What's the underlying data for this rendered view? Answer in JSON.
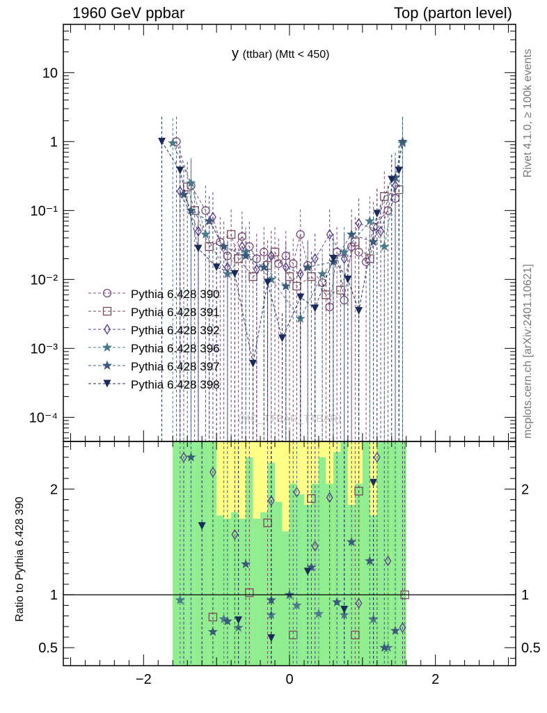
{
  "header": {
    "left": "1960 GeV ppbar",
    "right": "Top (parton level)"
  },
  "plot_title": {
    "main": "y",
    "sub": "(ttbar) (Mtt < 450)"
  },
  "side_tags": {
    "rivet": "Rivet 4.1.0, ≥ 100k events",
    "mcplots": "mcplots.cern.ch [arXiv:2401.10621]"
  },
  "watermark": "(MC_TTBAR_TTBAR)",
  "ratio_ylabel": "Ratio to Pythia 6.428 390",
  "colors": {
    "green_band": "#90ee90",
    "yellow_band": "#ffff88",
    "frame": "#000000"
  },
  "chart_data": {
    "type": "line",
    "title": "y (ttbar) (Mtt < 450)",
    "xlabel": "",
    "ylabel": "",
    "xlim": [
      -3.1,
      3.1
    ],
    "main_ylim_log10": [
      -4.35,
      1.7
    ],
    "main_yticks": [
      {
        "value": 10,
        "label": "10"
      },
      {
        "value": 1,
        "label": "1"
      },
      {
        "value": 0.1,
        "label": "10⁻¹"
      },
      {
        "value": 0.01,
        "label": "10⁻²"
      },
      {
        "value": 0.001,
        "label": "10⁻³"
      },
      {
        "value": 0.0001,
        "label": "10⁻⁴"
      }
    ],
    "ratio_ylim": [
      0.33,
      2.45
    ],
    "ratio_yticks": [
      {
        "value": 0.5,
        "label": "0.5"
      },
      {
        "value": 1,
        "label": "1"
      },
      {
        "value": 2,
        "label": "2"
      }
    ],
    "xticks": [
      {
        "value": -2,
        "label": "−2"
      },
      {
        "value": 0,
        "label": "0"
      },
      {
        "value": 2,
        "label": "2"
      }
    ],
    "legend_position": "middle-left",
    "series": [
      {
        "name": "Pythia 6.428 390",
        "color": "#7a4a7a",
        "marker": "circle",
        "x": [
          -1.55,
          -1.35,
          -1.15,
          -0.95,
          -0.85,
          -0.65,
          -0.55,
          -0.45,
          -0.35,
          -0.15,
          -0.05,
          0.05,
          0.15,
          0.25,
          0.45,
          0.55,
          0.65,
          0.75,
          0.85,
          0.95,
          1.05,
          1.15,
          1.35,
          1.45
        ],
        "y": [
          1.0,
          0.23,
          0.1,
          0.035,
          0.022,
          0.042,
          0.03,
          0.02,
          0.025,
          0.017,
          0.022,
          0.017,
          0.045,
          0.016,
          0.009,
          0.004,
          0.025,
          0.005,
          0.03,
          0.025,
          0.018,
          0.058,
          0.1,
          0.15
        ],
        "ratio_x": [],
        "ratio_y": []
      },
      {
        "name": "Pythia 6.428 391",
        "color": "#7a4a5a",
        "marker": "square",
        "x": [
          -1.4,
          -1.3,
          -1.1,
          -0.8,
          -0.7,
          -0.5,
          -0.3,
          -0.2,
          0.0,
          0.1,
          0.3,
          0.5,
          0.7,
          0.9,
          1.1,
          1.3,
          1.5
        ],
        "y": [
          0.22,
          0.1,
          0.03,
          0.045,
          0.02,
          0.011,
          0.016,
          0.025,
          0.011,
          0.008,
          0.011,
          0.006,
          0.007,
          0.035,
          0.02,
          0.16,
          0.2
        ],
        "ratio_x": [
          -1.05,
          -0.55,
          -0.3,
          0.05,
          0.3,
          0.9,
          0.95,
          1.58
        ],
        "ratio_y": [
          0.79,
          1.02,
          1.68,
          0.62,
          1.91,
          0.62,
          1.98,
          1.0
        ]
      },
      {
        "name": "Pythia 6.428 392",
        "color": "#5a3a8a",
        "marker": "diamond",
        "x": [
          -1.5,
          -1.25,
          -1.05,
          -0.85,
          -0.65,
          -0.45,
          -0.25,
          -0.05,
          0.15,
          0.35,
          0.55,
          0.75,
          0.95,
          1.25,
          1.45
        ],
        "y": [
          0.19,
          0.05,
          0.08,
          0.015,
          0.03,
          0.014,
          0.022,
          0.015,
          0.012,
          0.02,
          0.045,
          0.02,
          0.065,
          0.05,
          0.23
        ],
        "ratio_x": [
          -1.45,
          -1.05,
          -0.75,
          -0.25,
          0.1,
          0.35,
          0.55,
          0.95,
          1.2,
          1.35,
          1.55
        ],
        "ratio_y": [
          2.3,
          2.16,
          1.57,
          1.89,
          1.97,
          1.46,
          1.92,
          0.92,
          2.3,
          1.32,
          0.69
        ]
      },
      {
        "name": "Pythia 6.428 396",
        "color": "#4a7a8a",
        "marker": "star",
        "x": [
          -1.6,
          -1.35,
          -1.15,
          -0.85,
          -0.6,
          -0.25,
          0.15,
          0.45,
          0.75,
          1.1,
          1.3,
          1.55
        ],
        "y": [
          0.95,
          0.25,
          0.045,
          0.012,
          0.025,
          0.01,
          0.0027,
          0.012,
          0.025,
          0.07,
          0.03,
          0.95
        ],
        "ratio_x": [
          -1.5,
          -0.9,
          -0.7,
          -0.25,
          0.1,
          0.4,
          0.75,
          1.15,
          1.35
        ],
        "ratio_y": [
          0.95,
          0.77,
          0.69,
          0.81,
          0.9,
          0.82,
          0.81,
          0.77,
          0.5
        ]
      },
      {
        "name": "Pythia 6.428 397",
        "color": "#3a5a7a",
        "marker": "star",
        "x": [
          -1.45,
          -1.35,
          -1.1,
          -0.9,
          -0.6,
          -0.35,
          -0.05,
          0.25,
          0.6,
          0.85,
          1.15,
          1.45,
          1.55
        ],
        "y": [
          0.17,
          0.1,
          0.07,
          0.03,
          0.022,
          0.015,
          0.008,
          0.015,
          0.018,
          0.045,
          0.035,
          0.3,
          1.0
        ],
        "ratio_x": [
          -1.35,
          -1.05,
          -0.85,
          -0.6,
          -0.25,
          0.0,
          0.3,
          0.65,
          0.85,
          1.1,
          1.3,
          1.45
        ],
        "ratio_y": [
          2.3,
          0.65,
          0.75,
          1.29,
          0.95,
          1.0,
          1.26,
          0.93,
          1.5,
          1.32,
          0.5,
          0.66
        ]
      },
      {
        "name": "Pythia 6.428 398",
        "color": "#1a2a5a",
        "marker": "triangle-down",
        "x": [
          -1.75,
          -1.5,
          -1.25,
          -1.0,
          -0.75,
          -0.5,
          -0.3,
          -0.1,
          0.15,
          0.35,
          0.6,
          0.8,
          0.95,
          1.2,
          1.4,
          1.5
        ],
        "y": [
          1.0,
          0.38,
          0.028,
          0.015,
          0.012,
          0.0006,
          0.009,
          0.0014,
          0.0055,
          0.0038,
          0.02,
          0.01,
          0.0035,
          0.09,
          0.28,
          0.38
        ],
        "ratio_x": [
          -1.2,
          -0.7,
          -0.25,
          0.25,
          0.75,
          1.15
        ],
        "ratio_y": [
          1.65,
          0.76,
          0.59,
          1.22,
          0.86,
          2.06
        ]
      }
    ],
    "ratio_bands": {
      "x_edges": [
        -1.6,
        -1.5,
        -1.4,
        -1.3,
        -1.2,
        -1.1,
        -1.0,
        -0.9,
        -0.8,
        -0.7,
        -0.6,
        -0.5,
        -0.4,
        -0.3,
        -0.2,
        -0.1,
        0.0,
        0.1,
        0.2,
        0.3,
        0.4,
        0.5,
        0.6,
        0.7,
        0.8,
        0.9,
        1.0,
        1.1,
        1.2,
        1.3,
        1.4,
        1.5,
        1.6
      ],
      "green_lo": [
        0.33,
        0.33,
        0.33,
        0.33,
        0.33,
        0.33,
        0.33,
        0.33,
        0.33,
        0.33,
        0.33,
        0.33,
        0.33,
        0.33,
        0.33,
        0.33,
        0.33,
        0.33,
        0.33,
        0.33,
        0.33,
        0.33,
        0.33,
        0.33,
        0.33,
        0.33,
        0.33,
        0.33,
        0.33,
        0.33,
        0.33,
        0.33
      ],
      "green_hi": [
        2.45,
        2.45,
        2.45,
        2.45,
        2.45,
        2.45,
        1.75,
        1.72,
        1.78,
        1.72,
        2.3,
        1.72,
        1.78,
        2.25,
        1.88,
        1.6,
        2.05,
        1.95,
        1.85,
        2.05,
        2.3,
        2.05,
        2.35,
        2.45,
        1.85,
        2.05,
        2.45,
        1.75,
        2.45,
        2.45,
        2.45,
        2.45
      ],
      "yellow_hi": [
        2.45,
        2.45,
        2.45,
        2.45,
        2.45,
        2.45,
        2.45,
        2.45,
        2.45,
        2.45,
        2.45,
        2.45,
        2.45,
        2.45,
        2.45,
        2.45,
        2.45,
        2.45,
        2.45,
        2.45,
        2.45,
        2.45,
        2.45,
        2.45,
        2.45,
        2.45,
        2.45,
        2.45,
        2.45,
        2.45,
        2.45,
        2.45
      ]
    }
  }
}
